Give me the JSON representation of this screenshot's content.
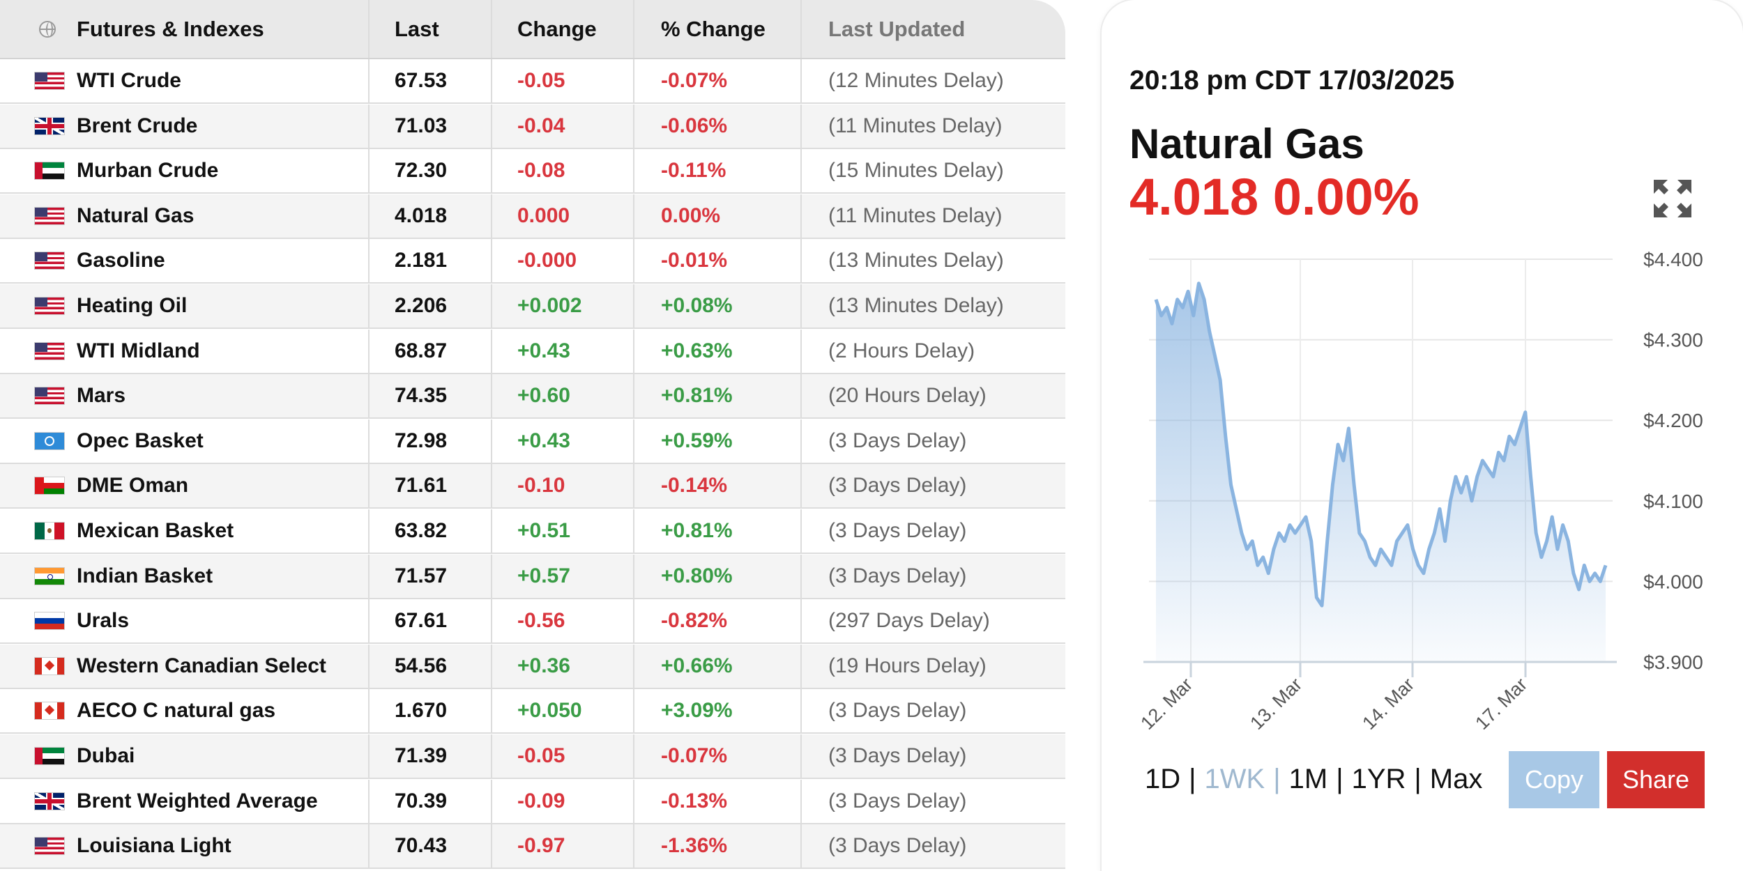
{
  "table": {
    "headers": {
      "name": "Futures & Indexes",
      "last": "Last",
      "change": "Change",
      "pct_change": "% Change",
      "updated": "Last Updated"
    },
    "rows": [
      {
        "flag": "us",
        "name": "WTI Crude",
        "last": "67.53",
        "change": "-0.05",
        "pct": "-0.07%",
        "updated": "(12 Minutes Delay)",
        "dir": "neg"
      },
      {
        "flag": "uk",
        "name": "Brent Crude",
        "last": "71.03",
        "change": "-0.04",
        "pct": "-0.06%",
        "updated": "(11 Minutes Delay)",
        "dir": "neg"
      },
      {
        "flag": "uae",
        "name": "Murban Crude",
        "last": "72.30",
        "change": "-0.08",
        "pct": "-0.11%",
        "updated": "(15 Minutes Delay)",
        "dir": "neg"
      },
      {
        "flag": "us",
        "name": "Natural Gas",
        "last": "4.018",
        "change": "0.000",
        "pct": "0.00%",
        "updated": "(11 Minutes Delay)",
        "dir": "neg"
      },
      {
        "flag": "us",
        "name": "Gasoline",
        "last": "2.181",
        "change": "-0.000",
        "pct": "-0.01%",
        "updated": "(13 Minutes Delay)",
        "dir": "neg"
      },
      {
        "flag": "us",
        "name": "Heating Oil",
        "last": "2.206",
        "change": "+0.002",
        "pct": "+0.08%",
        "updated": "(13 Minutes Delay)",
        "dir": "pos"
      },
      {
        "flag": "us",
        "name": "WTI Midland",
        "last": "68.87",
        "change": "+0.43",
        "pct": "+0.63%",
        "updated": "(2 Hours Delay)",
        "dir": "pos"
      },
      {
        "flag": "us",
        "name": "Mars",
        "last": "74.35",
        "change": "+0.60",
        "pct": "+0.81%",
        "updated": "(20 Hours Delay)",
        "dir": "pos"
      },
      {
        "flag": "opec",
        "name": "Opec Basket",
        "last": "72.98",
        "change": "+0.43",
        "pct": "+0.59%",
        "updated": "(3 Days Delay)",
        "dir": "pos"
      },
      {
        "flag": "oman",
        "name": "DME Oman",
        "last": "71.61",
        "change": "-0.10",
        "pct": "-0.14%",
        "updated": "(3 Days Delay)",
        "dir": "neg"
      },
      {
        "flag": "mx",
        "name": "Mexican Basket",
        "last": "63.82",
        "change": "+0.51",
        "pct": "+0.81%",
        "updated": "(3 Days Delay)",
        "dir": "pos"
      },
      {
        "flag": "in",
        "name": "Indian Basket",
        "last": "71.57",
        "change": "+0.57",
        "pct": "+0.80%",
        "updated": "(3 Days Delay)",
        "dir": "pos"
      },
      {
        "flag": "ru",
        "name": "Urals",
        "last": "67.61",
        "change": "-0.56",
        "pct": "-0.82%",
        "updated": "(297 Days Delay)",
        "dir": "neg"
      },
      {
        "flag": "ca",
        "name": "Western Canadian Select",
        "last": "54.56",
        "change": "+0.36",
        "pct": "+0.66%",
        "updated": "(19 Hours Delay)",
        "dir": "pos"
      },
      {
        "flag": "ca",
        "name": "AECO C natural gas",
        "last": "1.670",
        "change": "+0.050",
        "pct": "+3.09%",
        "updated": "(3 Days Delay)",
        "dir": "pos"
      },
      {
        "flag": "uae",
        "name": "Dubai",
        "last": "71.39",
        "change": "-0.05",
        "pct": "-0.07%",
        "updated": "(3 Days Delay)",
        "dir": "neg"
      },
      {
        "flag": "uk",
        "name": "Brent Weighted Average",
        "last": "70.39",
        "change": "-0.09",
        "pct": "-0.13%",
        "updated": "(3 Days Delay)",
        "dir": "neg"
      },
      {
        "flag": "us",
        "name": "Louisiana Light",
        "last": "70.43",
        "change": "-0.97",
        "pct": "-1.36%",
        "updated": "(3 Days Delay)",
        "dir": "neg"
      }
    ]
  },
  "card": {
    "timestamp": "20:18 pm CDT 17/03/2025",
    "instrument": "Natural Gas",
    "price": "4.018",
    "pct": "0.00%",
    "expand_icon": "expand-icon",
    "ranges": [
      "1D",
      "1WK",
      "1M",
      "1YR",
      "Max"
    ],
    "active_range": "1WK",
    "copy_label": "Copy",
    "share_label": "Share"
  },
  "colors": {
    "negative": "#d9363e",
    "positive": "#3a9c46",
    "price": "#e32b26",
    "line": "#8ab4e0",
    "copy": "#a8c8e6",
    "share": "#d22f2c"
  },
  "chart_data": {
    "type": "area",
    "ylim": [
      3.9,
      4.4
    ],
    "yticks": [
      "$4.400",
      "$4.300",
      "$4.200",
      "$4.100",
      "$4.000",
      "$3.900"
    ],
    "xticks": [
      "12. Mar",
      "13. Mar",
      "14. Mar",
      "17. Mar"
    ],
    "grid": true,
    "series": [
      {
        "values": [
          4.35,
          4.33,
          4.34,
          4.32,
          4.35,
          4.34,
          4.36,
          4.33,
          4.37,
          4.35,
          4.31,
          4.28,
          4.25,
          4.18,
          4.12,
          4.09,
          4.06,
          4.04,
          4.05,
          4.02,
          4.03,
          4.01,
          4.04,
          4.06,
          4.05,
          4.07,
          4.06,
          4.07,
          4.08,
          4.05,
          3.98,
          3.97,
          4.05,
          4.12,
          4.17,
          4.15,
          4.19,
          4.12,
          4.06,
          4.05,
          4.03,
          4.02,
          4.04,
          4.03,
          4.02,
          4.05,
          4.06,
          4.07,
          4.04,
          4.02,
          4.01,
          4.04,
          4.06,
          4.09,
          4.05,
          4.1,
          4.13,
          4.11,
          4.13,
          4.1,
          4.13,
          4.15,
          4.14,
          4.13,
          4.16,
          4.15,
          4.18,
          4.17,
          4.19,
          4.21,
          4.13,
          4.06,
          4.03,
          4.05,
          4.08,
          4.04,
          4.07,
          4.05,
          4.01,
          3.99,
          4.02,
          4.0,
          4.01,
          4.0,
          4.02
        ]
      }
    ]
  }
}
